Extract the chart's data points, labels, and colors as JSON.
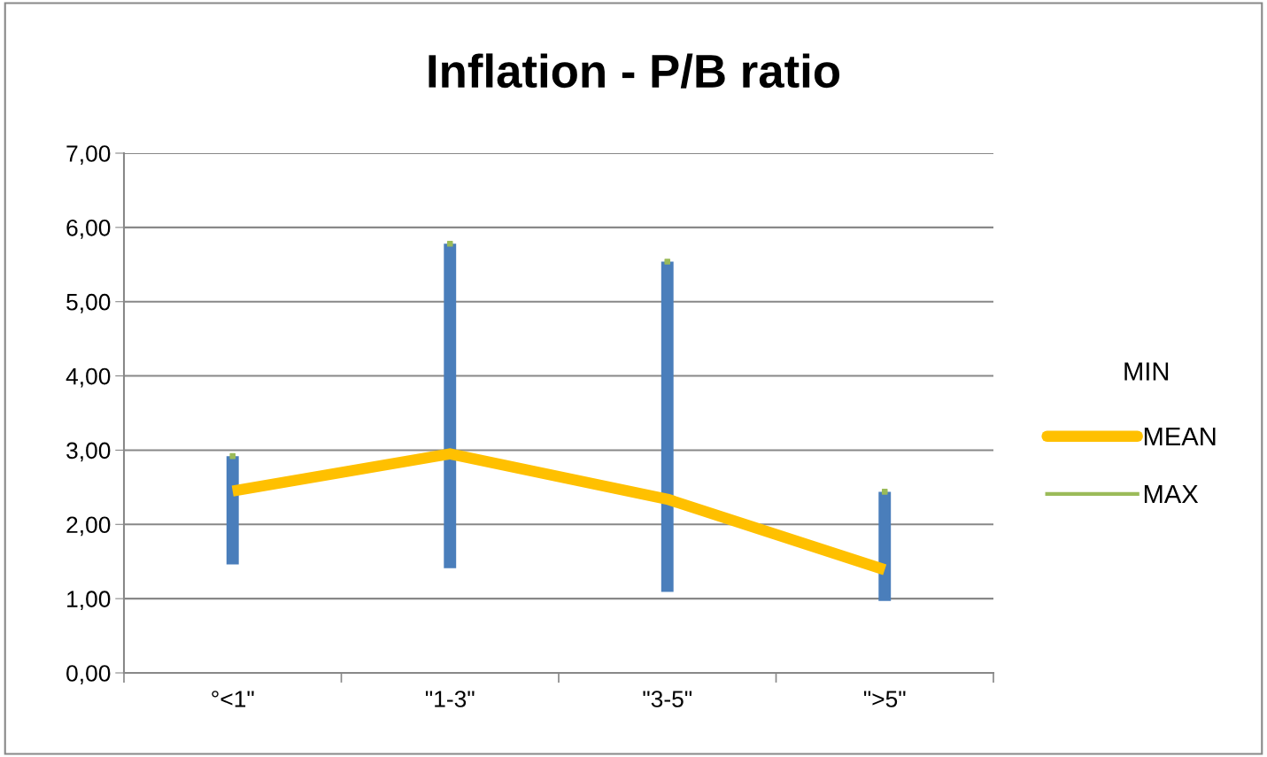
{
  "chart_data": {
    "type": "line",
    "title": "Inflation - P/B ratio",
    "categories": [
      "°<1\"",
      "\"1-3\"",
      "\"3-5\"",
      "\">5\""
    ],
    "series": [
      {
        "name": "MEAN",
        "color": "#ffc000",
        "marker": "none",
        "values": [
          2.45,
          2.95,
          2.34,
          1.39
        ],
        "errors": [
          [
            1.46,
            2.92
          ],
          [
            1.41,
            5.78
          ],
          [
            1.09,
            5.54
          ],
          [
            0.97,
            2.44
          ]
        ]
      },
      {
        "name": "MAX",
        "type": "scatter",
        "color": "#9bbb59",
        "marker": "square",
        "values": [
          2.92,
          5.78,
          5.54,
          2.44
        ]
      }
    ],
    "annotations": [
      "MIN"
    ],
    "ylim": [
      0,
      7
    ],
    "yticks": [
      {
        "value": 0,
        "label": "0,00"
      },
      {
        "value": 1,
        "label": "1,00"
      },
      {
        "value": 2,
        "label": "2,00"
      },
      {
        "value": 3,
        "label": "3,00"
      },
      {
        "value": 4,
        "label": "4,00"
      },
      {
        "value": 5,
        "label": "5,00"
      },
      {
        "value": 6,
        "label": "6,00"
      },
      {
        "value": 7,
        "label": "7,00"
      }
    ],
    "grid": "y",
    "legend": "right"
  }
}
